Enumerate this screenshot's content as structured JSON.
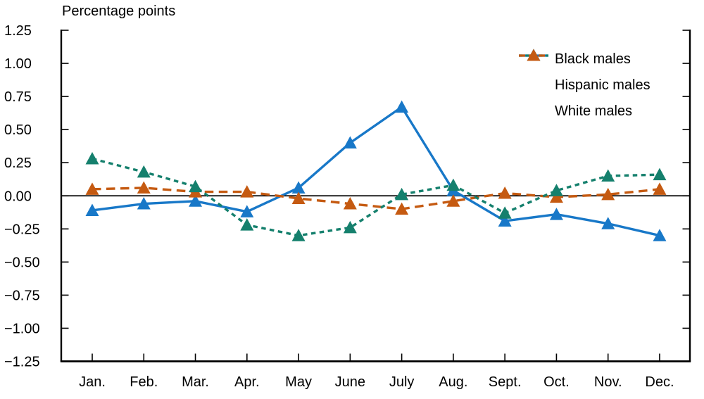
{
  "chart_data": {
    "type": "line",
    "title": "Percentage points",
    "categories": [
      "Jan.",
      "Feb.",
      "Mar.",
      "Apr.",
      "May",
      "June",
      "July",
      "Aug.",
      "Sept.",
      "Oct.",
      "Nov.",
      "Dec."
    ],
    "ylim": [
      -1.25,
      1.25
    ],
    "ytick_step": 0.25,
    "ytick_labels": [
      "1.25",
      "1.00",
      "0.75",
      "0.50",
      "0.25",
      "0.00",
      "−0.25",
      "−0.50",
      "−0.75",
      "−1.00",
      "−1.25"
    ],
    "grid": false,
    "zero_line": true,
    "legend_position": "top-right-inside",
    "axis_color": "#000000",
    "series": [
      {
        "name": "Black males",
        "color": "#1878c8",
        "dash": "solid",
        "marker": "triangle-up",
        "values": [
          -0.11,
          -0.06,
          -0.04,
          -0.12,
          0.06,
          0.4,
          0.67,
          0.04,
          -0.19,
          -0.14,
          -0.21,
          -0.3
        ]
      },
      {
        "name": "Hispanic males",
        "color": "#15806d",
        "dash": "short-dash",
        "marker": "triangle-up",
        "values": [
          0.28,
          0.18,
          0.07,
          -0.22,
          -0.3,
          -0.24,
          0.01,
          0.08,
          -0.13,
          0.04,
          0.15,
          0.16
        ]
      },
      {
        "name": "White males",
        "color": "#c55a11",
        "dash": "long-dash",
        "marker": "triangle-up",
        "values": [
          0.05,
          0.06,
          0.03,
          0.03,
          -0.02,
          -0.06,
          -0.1,
          -0.04,
          0.02,
          -0.01,
          0.01,
          0.05
        ]
      }
    ]
  }
}
